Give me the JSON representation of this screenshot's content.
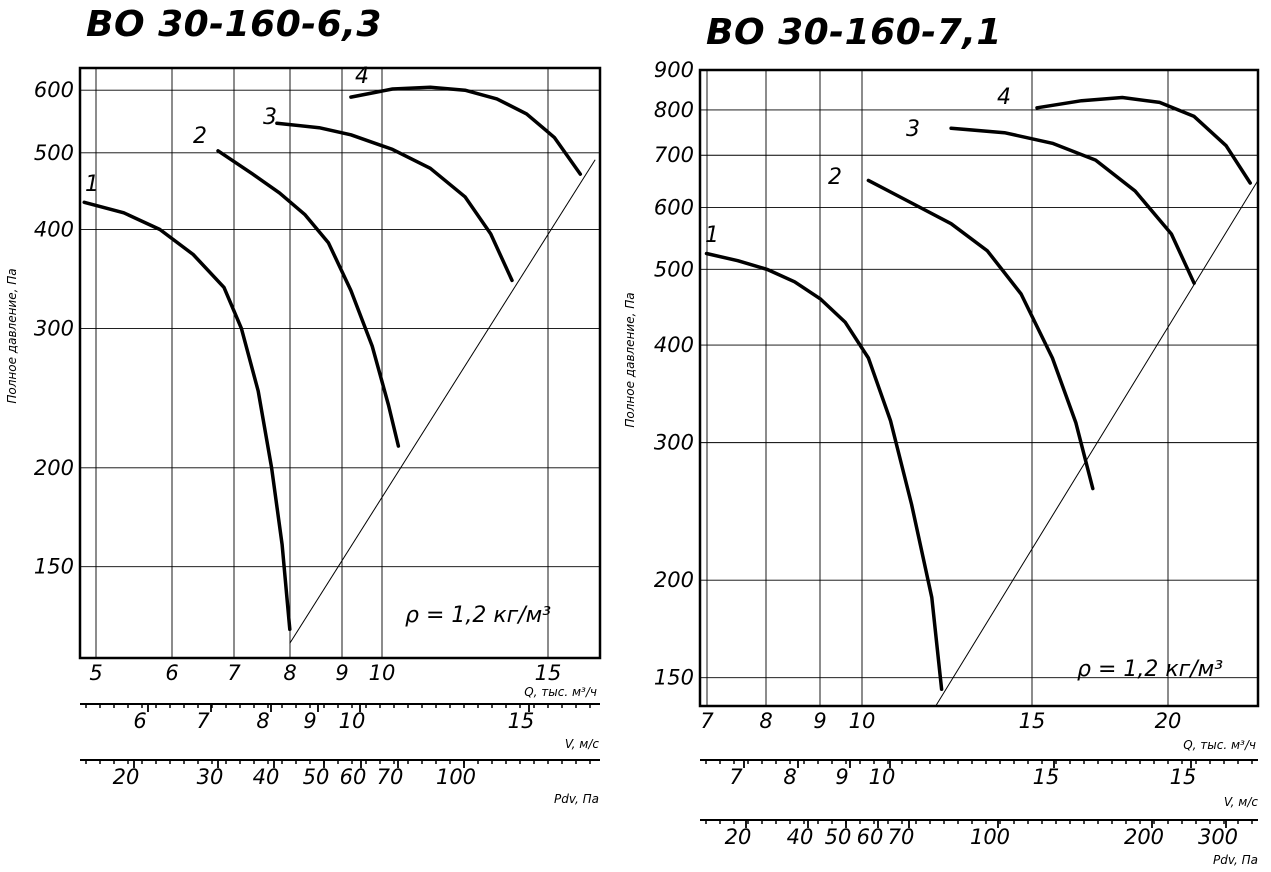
{
  "chart_data": [
    {
      "type": "line",
      "title": "ВО 30-160-6,3",
      "ylabel": "Полное давление, Па",
      "xlabel": "Q, тыс. м³/ч",
      "density_note": "ρ = 1,2 кг/м³",
      "y_scale": "log",
      "ylim": [
        115,
        640
      ],
      "xlim": [
        4.95,
        17.3
      ],
      "x_scale": "log",
      "y_ticks": [
        {
          "v": 150,
          "l": "150"
        },
        {
          "v": 200,
          "l": "200"
        },
        {
          "v": 300,
          "l": "300"
        },
        {
          "v": 400,
          "l": "400"
        },
        {
          "v": 500,
          "l": "500"
        },
        {
          "v": 600,
          "l": "600"
        }
      ],
      "x_ticks": [
        {
          "v": 5,
          "l": "5"
        },
        {
          "v": 6,
          "l": "6"
        },
        {
          "v": 7,
          "l": "7"
        },
        {
          "v": 8,
          "l": "8"
        },
        {
          "v": 9,
          "l": "9"
        },
        {
          "v": 10,
          "l": "10"
        },
        {
          "v": 15,
          "l": "15"
        }
      ],
      "series": [
        {
          "name": "1",
          "values": [
            [
              5.0,
              433
            ],
            [
              5.5,
              420
            ],
            [
              6.0,
              400
            ],
            [
              6.5,
              372
            ],
            [
              7.0,
              338
            ],
            [
              7.3,
              300
            ],
            [
              7.6,
              250
            ],
            [
              7.85,
              200
            ],
            [
              8.05,
              160
            ],
            [
              8.2,
              125
            ]
          ]
        },
        {
          "name": "2",
          "values": [
            [
              6.9,
              503
            ],
            [
              7.5,
              470
            ],
            [
              8.0,
              445
            ],
            [
              8.5,
              418
            ],
            [
              9.0,
              385
            ],
            [
              9.5,
              335
            ],
            [
              10.0,
              285
            ],
            [
              10.4,
              240
            ],
            [
              10.65,
              213
            ]
          ]
        },
        {
          "name": "3",
          "values": [
            [
              7.95,
              545
            ],
            [
              8.8,
              538
            ],
            [
              9.5,
              527
            ],
            [
              10.5,
              505
            ],
            [
              11.5,
              478
            ],
            [
              12.5,
              440
            ],
            [
              13.3,
              395
            ],
            [
              14.0,
              345
            ]
          ]
        },
        {
          "name": "4",
          "values": [
            [
              9.5,
              588
            ],
            [
              10.5,
              602
            ],
            [
              11.5,
              605
            ],
            [
              12.5,
              600
            ],
            [
              13.5,
              585
            ],
            [
              14.5,
              560
            ],
            [
              15.5,
              523
            ],
            [
              16.5,
              470
            ]
          ]
        }
      ],
      "system_line": [
        [
          8.2,
          120
        ],
        [
          17.1,
          490
        ]
      ],
      "secondary_axes": [
        {
          "label": "V, м/с",
          "ticks": [
            "6",
            "7",
            "8",
            "9",
            "10",
            "15"
          ]
        },
        {
          "label": "Pdv, Па",
          "ticks": [
            "20",
            "30",
            "40",
            "50",
            "60",
            "70",
            "100"
          ]
        }
      ]
    },
    {
      "type": "line",
      "title": "ВО 30-160-7,1",
      "ylabel": "Полное давление, Па",
      "xlabel": "Q, тыс. м³/ч",
      "density_note": "ρ = 1,2 кг/м³",
      "y_scale": "log",
      "ylim": [
        138,
        900
      ],
      "xlim": [
        6.9,
        23.6
      ],
      "x_scale": "log",
      "y_ticks": [
        {
          "v": 150,
          "l": "150"
        },
        {
          "v": 200,
          "l": "200"
        },
        {
          "v": 300,
          "l": "300"
        },
        {
          "v": 400,
          "l": "400"
        },
        {
          "v": 500,
          "l": "500"
        },
        {
          "v": 600,
          "l": "600"
        },
        {
          "v": 700,
          "l": "700"
        },
        {
          "v": 800,
          "l": "800"
        },
        {
          "v": 900,
          "l": "900"
        }
      ],
      "x_ticks": [
        {
          "v": 7,
          "l": "7"
        },
        {
          "v": 8,
          "l": "8"
        },
        {
          "v": 9,
          "l": "9"
        },
        {
          "v": 10,
          "l": "10"
        },
        {
          "v": 15,
          "l": "15"
        },
        {
          "v": 20,
          "l": "20"
        }
      ],
      "series": [
        {
          "name": "1",
          "values": [
            [
              7.0,
              524
            ],
            [
              7.5,
              513
            ],
            [
              8.0,
              500
            ],
            [
              8.5,
              482
            ],
            [
              9.0,
              458
            ],
            [
              9.5,
              428
            ],
            [
              10.0,
              385
            ],
            [
              10.5,
              320
            ],
            [
              11.0,
              250
            ],
            [
              11.5,
              190
            ],
            [
              11.75,
              145
            ]
          ]
        },
        {
          "name": "2",
          "values": [
            [
              10.0,
              650
            ],
            [
              11.0,
              608
            ],
            [
              12.0,
              572
            ],
            [
              13.0,
              528
            ],
            [
              14.0,
              465
            ],
            [
              15.0,
              385
            ],
            [
              15.8,
              318
            ],
            [
              16.4,
              262
            ]
          ]
        },
        {
          "name": "3",
          "values": [
            [
              12.0,
              758
            ],
            [
              13.5,
              748
            ],
            [
              15.0,
              725
            ],
            [
              16.5,
              690
            ],
            [
              18.0,
              630
            ],
            [
              19.5,
              555
            ],
            [
              20.5,
              480
            ]
          ]
        },
        {
          "name": "4",
          "values": [
            [
              14.5,
              805
            ],
            [
              16.0,
              822
            ],
            [
              17.5,
              830
            ],
            [
              19.0,
              818
            ],
            [
              20.5,
              785
            ],
            [
              22.0,
              720
            ],
            [
              23.2,
              645
            ]
          ]
        }
      ],
      "system_line": [
        [
          11.6,
          138
        ],
        [
          23.6,
          650
        ]
      ],
      "secondary_axes": [
        {
          "label": "V, м/с",
          "ticks": [
            "7",
            "8",
            "9",
            "10",
            "15",
            "15"
          ]
        },
        {
          "label": "Pdv, Па",
          "ticks": [
            "20",
            "40",
            "50",
            "60",
            "70",
            "100",
            "200",
            "300"
          ]
        }
      ]
    }
  ]
}
